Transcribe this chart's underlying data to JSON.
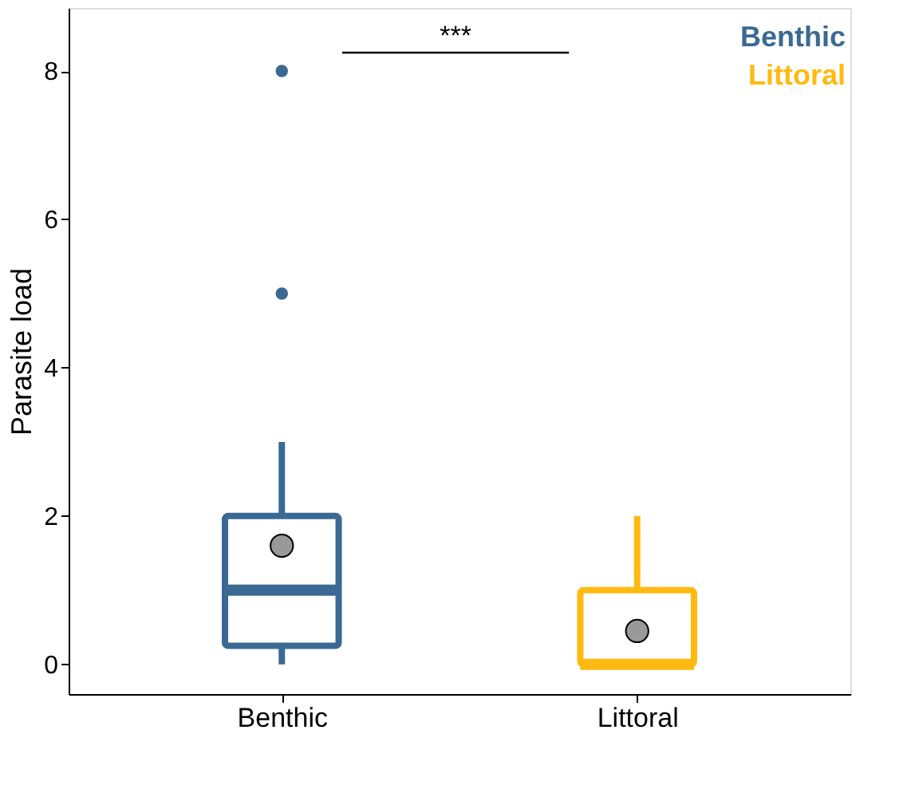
{
  "chart_data": {
    "type": "box",
    "ylabel": "Parasite load",
    "categories": [
      "Benthic",
      "Littoral"
    ],
    "series": [
      {
        "name": "Benthic",
        "color": "#3a6a94",
        "boxes": [
          {
            "low": 0,
            "q1": 0.25,
            "median": 1,
            "q3": 2,
            "high": 3,
            "mean": 1.6,
            "outliers": [
              5,
              8
            ]
          },
          null
        ]
      },
      {
        "name": "Littoral",
        "color": "#ffb90f",
        "boxes": [
          null,
          {
            "low": 0,
            "q1": 0,
            "median": 0,
            "q3": 1,
            "high": 2,
            "mean": 0.45
          }
        ]
      }
    ],
    "ylim": [
      -0.4,
      8.85
    ],
    "yticks": [
      0,
      2,
      4,
      6,
      8
    ],
    "grid": false,
    "legend": "top right",
    "annotations": [
      "***"
    ]
  }
}
